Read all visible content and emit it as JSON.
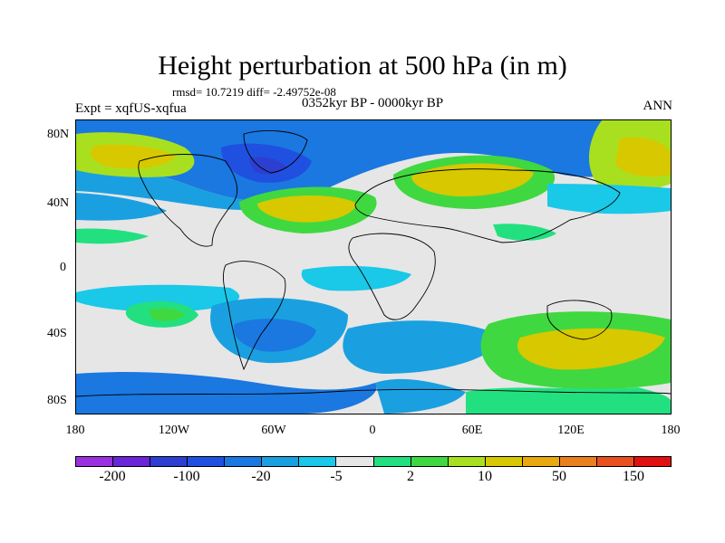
{
  "title": "Height perturbation at 500 hPa (in m)",
  "stats_line": "rmsd= 10.7219 diff= -2.49752e-08",
  "experiment_label": "Expt = xqfUS-xqfua",
  "period_label": "0352kyr BP - 0000kyr BP",
  "season_label": "ANN",
  "map": {
    "y_ticks": [
      "80N",
      "40N",
      "0",
      "40S",
      "80S"
    ],
    "x_ticks": [
      "180",
      "120W",
      "60W",
      "0",
      "60E",
      "120E",
      "180"
    ],
    "background_color": "#e6e6e6"
  },
  "colorbar": {
    "colors": [
      "#9a30e0",
      "#6a25d8",
      "#2d3fd0",
      "#2050e0",
      "#1a78e0",
      "#1aa0e0",
      "#1ac8e8",
      "#e6e6e6",
      "#22e080",
      "#40d840",
      "#a8e020",
      "#d8c800",
      "#e8a810",
      "#e88020",
      "#e85020",
      "#e01010"
    ],
    "labels": [
      "-200",
      "-100",
      "-20",
      "-5",
      "2",
      "10",
      "50",
      "150"
    ]
  }
}
